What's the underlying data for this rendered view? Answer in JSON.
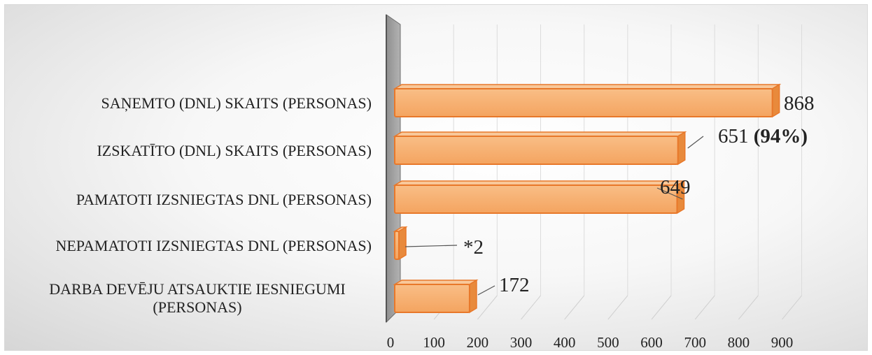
{
  "chart_data": {
    "type": "bar",
    "orientation": "horizontal",
    "style": "3d",
    "title": "",
    "xlabel": "",
    "ylabel": "",
    "xlim": [
      0,
      900
    ],
    "ticks": [
      0,
      100,
      200,
      300,
      400,
      500,
      600,
      700,
      800,
      900
    ],
    "grid": true,
    "legend": "none",
    "bar_color": "#f4a460",
    "bar_edge_color": "#e8782a",
    "categories": [
      [
        "SAŅEMTO (DNL)  SKAITS (PERSONAS)"
      ],
      [
        "IZSKATĪTO (DNL) SKAITS (PERSONAS)"
      ],
      [
        "PAMATOTI IZSNIEGTAS DNL  (PERSONAS)"
      ],
      [
        "NEPAMATOTI IZSNIEGTAS DNL (PERSONAS)"
      ],
      [
        "DARBA DEVĒJU ATSAUKTIE IESNIEGUMI",
        "(PERSONAS)"
      ]
    ],
    "values": [
      868,
      651,
      649,
      2,
      172
    ],
    "data_labels": [
      {
        "text": "868",
        "bold": ""
      },
      {
        "text": "651 ",
        "bold": "(94%)"
      },
      {
        "text": "649",
        "bold": ""
      },
      {
        "text": "*2",
        "bold": ""
      },
      {
        "text": "172",
        "bold": ""
      }
    ]
  }
}
